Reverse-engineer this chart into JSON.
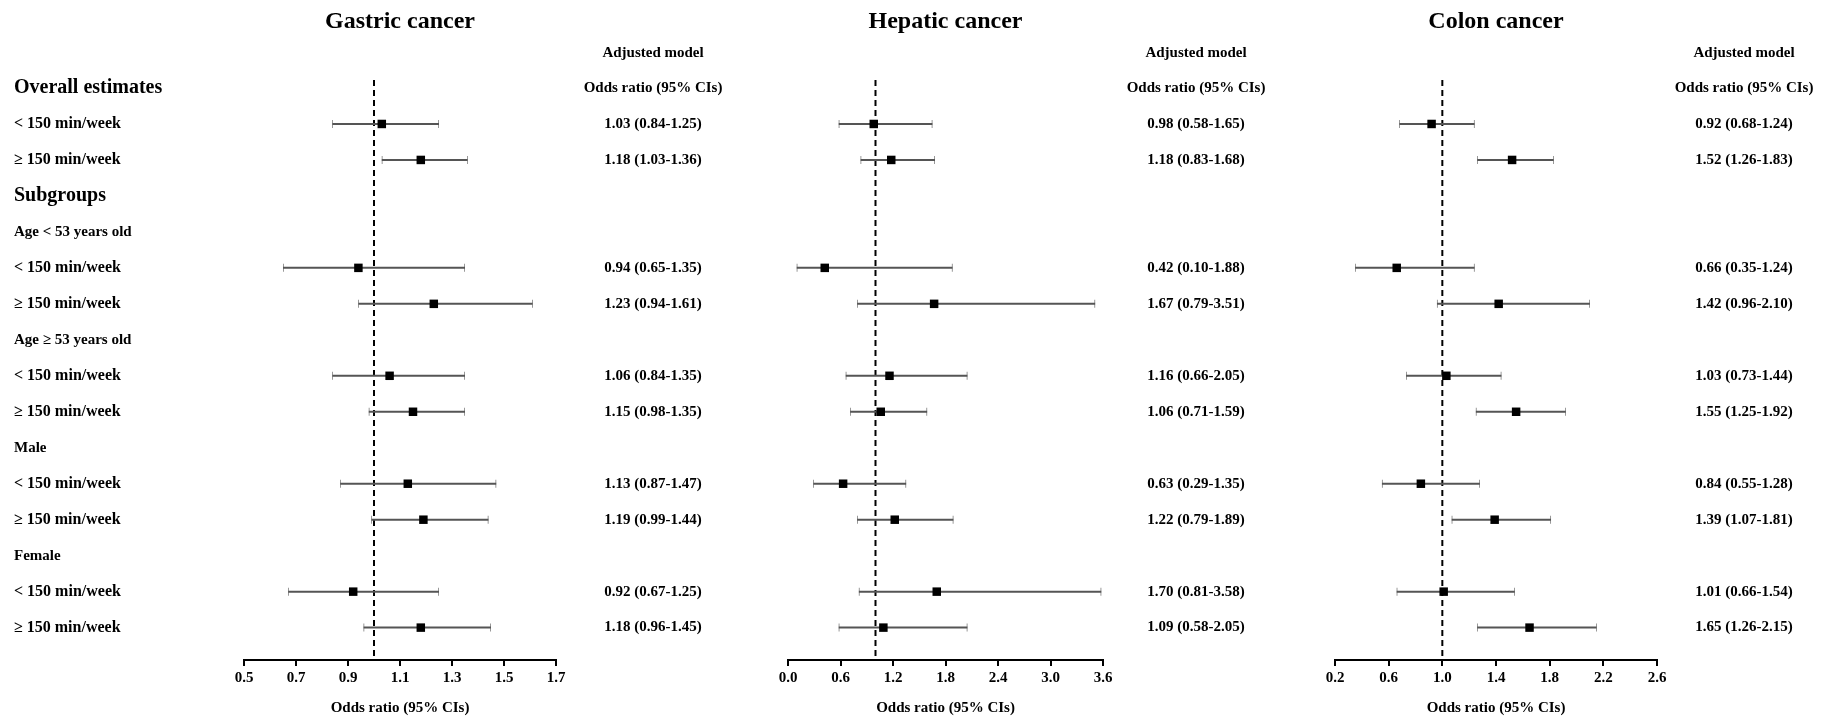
{
  "chart_data": [
    {
      "type": "scatter",
      "orientation": "horizontal",
      "title": "Gastric cancer",
      "xlabel": "Odds ratio (95% CIs)",
      "annotations": [
        "Adjusted model",
        "Odds ratio (95% CIs)"
      ],
      "categories": [
        "Overall estimates",
        "< 150 min/week",
        "≥ 150 min/week",
        "Subgroups",
        "Age < 53 years old",
        "< 150 min/week",
        "≥ 150 min/week",
        "Age ≥ 53 years old",
        "< 150 min/week",
        "≥ 150 min/week",
        "Male",
        "< 150 min/week",
        "≥ 150 min/week",
        "Female",
        "< 150 min/week",
        "≥ 150 min/week"
      ],
      "values": [
        null,
        1.03,
        1.18,
        null,
        null,
        0.94,
        1.23,
        null,
        1.06,
        1.15,
        null,
        1.13,
        1.19,
        null,
        0.92,
        1.18
      ],
      "errors": [
        null,
        [
          0.84,
          1.25
        ],
        [
          1.03,
          1.36
        ],
        null,
        null,
        [
          0.65,
          1.35
        ],
        [
          0.94,
          1.61
        ],
        null,
        [
          0.84,
          1.35
        ],
        [
          0.98,
          1.35
        ],
        null,
        [
          0.87,
          1.47
        ],
        [
          0.99,
          1.44
        ],
        null,
        [
          0.67,
          1.25
        ],
        [
          0.96,
          1.45
        ]
      ],
      "value_labels": [
        null,
        "1.03 (0.84-1.25)",
        "1.18 (1.03-1.36)",
        null,
        null,
        "0.94 (0.65-1.35)",
        "1.23 (0.94-1.61)",
        null,
        "1.06 (0.84-1.35)",
        "1.15 (0.98-1.35)",
        null,
        "1.13 (0.87-1.47)",
        "1.19 (0.99-1.44)",
        null,
        "0.92 (0.67-1.25)",
        "1.18 (0.96-1.45)"
      ],
      "color": "#000000",
      "marker": "square",
      "xlim": [
        0.5,
        1.7
      ],
      "xticks": [
        0.5,
        0.7,
        0.9,
        1.1,
        1.3,
        1.5,
        1.7
      ],
      "ref_lines": [
        {
          "axis": "x",
          "value": 1,
          "line_style": "dashed",
          "color": "#000000"
        }
      ]
    },
    {
      "type": "scatter",
      "orientation": "horizontal",
      "title": "Hepatic cancer",
      "xlabel": "Odds ratio (95% CIs)",
      "annotations": [
        "Adjusted model",
        "Odds ratio (95% CIs)"
      ],
      "categories": [
        null,
        null,
        null,
        null,
        null,
        null,
        null,
        null,
        null,
        null,
        null,
        null,
        null,
        null,
        null,
        null
      ],
      "values": [
        null,
        0.98,
        1.18,
        null,
        null,
        0.42,
        1.67,
        null,
        1.16,
        1.06,
        null,
        0.63,
        1.22,
        null,
        1.7,
        1.09
      ],
      "errors": [
        null,
        [
          0.58,
          1.65
        ],
        [
          0.83,
          1.68
        ],
        null,
        null,
        [
          0.1,
          1.88
        ],
        [
          0.79,
          3.51
        ],
        null,
        [
          0.66,
          2.05
        ],
        [
          0.71,
          1.59
        ],
        null,
        [
          0.29,
          1.35
        ],
        [
          0.79,
          1.89
        ],
        null,
        [
          0.81,
          3.58
        ],
        [
          0.58,
          2.05
        ]
      ],
      "value_labels": [
        null,
        "0.98 (0.58-1.65)",
        "1.18 (0.83-1.68)",
        null,
        null,
        "0.42 (0.10-1.88)",
        "1.67 (0.79-3.51)",
        null,
        "1.16 (0.66-2.05)",
        "1.06 (0.71-1.59)",
        null,
        "0.63 (0.29-1.35)",
        "1.22 (0.79-1.89)",
        null,
        "1.70 (0.81-3.58)",
        "1.09 (0.58-2.05)"
      ],
      "color": "#000000",
      "marker": "square",
      "tick_labels": "x",
      "xlim": [
        0,
        3.6
      ],
      "xticks": [
        {
          "value": 0,
          "label": "0.0"
        },
        0.6,
        1.2,
        1.8,
        2.4,
        {
          "value": 3,
          "label": "3.0"
        },
        3.6
      ],
      "ref_lines": [
        {
          "axis": "x",
          "value": 1,
          "line_style": "dashed",
          "color": "#000000"
        }
      ]
    },
    {
      "type": "scatter",
      "orientation": "horizontal",
      "title": "Colon cancer",
      "xlabel": "Odds ratio (95% CIs)",
      "annotations": [
        "Adjusted model",
        "Odds ratio (95% CIs)"
      ],
      "categories": [
        null,
        null,
        null,
        null,
        null,
        null,
        null,
        null,
        null,
        null,
        null,
        null,
        null,
        null,
        null,
        null
      ],
      "values": [
        null,
        0.92,
        1.52,
        null,
        null,
        0.66,
        1.42,
        null,
        1.03,
        1.55,
        null,
        0.84,
        1.39,
        null,
        1.01,
        1.65
      ],
      "errors": [
        null,
        [
          0.68,
          1.24
        ],
        [
          1.26,
          1.83
        ],
        null,
        null,
        [
          0.35,
          1.24
        ],
        [
          0.96,
          2.1
        ],
        null,
        [
          0.73,
          1.44
        ],
        [
          1.25,
          1.92
        ],
        null,
        [
          0.55,
          1.28
        ],
        [
          1.07,
          1.81
        ],
        null,
        [
          0.66,
          1.54
        ],
        [
          1.26,
          2.15
        ]
      ],
      "value_labels": [
        null,
        "0.92 (0.68-1.24)",
        "1.52 (1.26-1.83)",
        null,
        null,
        "0.66 (0.35-1.24)",
        "1.42 (0.96-2.10)",
        null,
        "1.03 (0.73-1.44)",
        "1.55 (1.25-1.92)",
        null,
        "0.84 (0.55-1.28)",
        "1.39 (1.07-1.81)",
        null,
        "1.01 (0.66-1.54)",
        "1.65 (1.26-2.15)"
      ],
      "color": "#000000",
      "marker": "square",
      "tick_labels": "x",
      "xlim": [
        0.2,
        2.6
      ],
      "xticks": [
        0.2,
        0.6,
        {
          "value": 1,
          "label": "1.0"
        },
        1.4,
        1.8,
        2.2,
        2.6
      ],
      "ref_lines": [
        {
          "axis": "x",
          "value": 1,
          "line_style": "dashed",
          "color": "#000000"
        }
      ]
    }
  ]
}
